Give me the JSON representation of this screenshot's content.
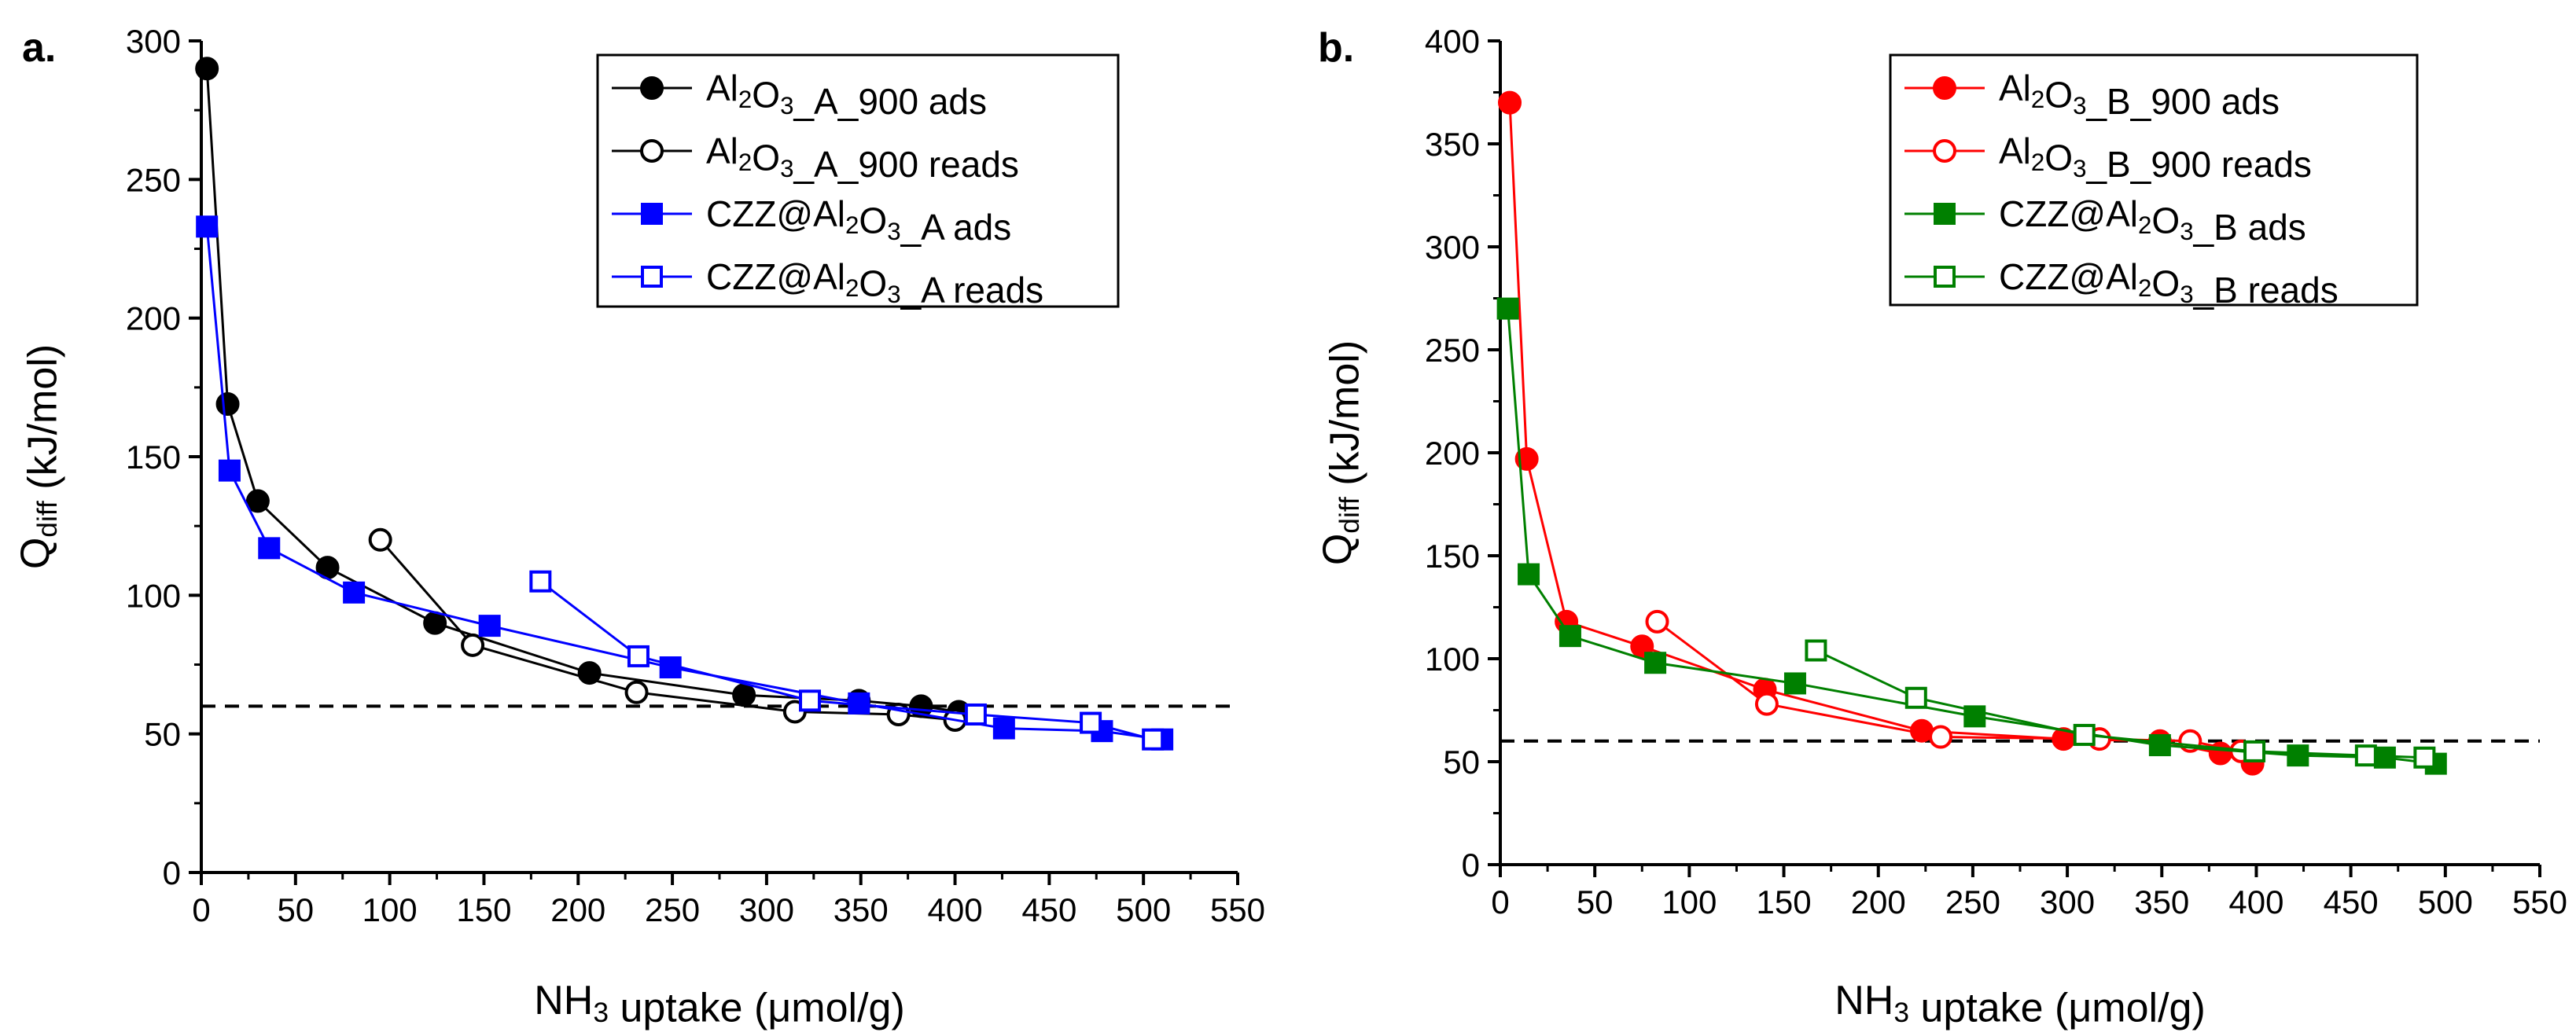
{
  "chart_data": [
    {
      "type": "line",
      "panel_label": "a.",
      "xlabel": {
        "prefix": "NH",
        "sub": "3",
        "suffix": " uptake (μmol/g)"
      },
      "ylabel": {
        "prefix": "Q",
        "sub": "diff",
        "suffix": " (kJ/mol)"
      },
      "xlim": [
        0,
        550
      ],
      "ylim": [
        0,
        300
      ],
      "xticks": [
        "0",
        "50",
        "100",
        "150",
        "200",
        "250",
        "300",
        "350",
        "400",
        "450",
        "500",
        "550"
      ],
      "yticks": [
        "0",
        "50",
        "100",
        "150",
        "200",
        "250",
        "300"
      ],
      "reference_line": {
        "y": 60,
        "style": "dashed",
        "color": "#000000"
      },
      "legend_position": "top-right",
      "series": [
        {
          "name": "Al2O3_A_900 ads",
          "legend": {
            "p1": "Al",
            "s1": "2",
            "p2": "O",
            "s2": "3",
            "p3": "_A_900 ads"
          },
          "color": "#000000",
          "marker": "circle",
          "filled": true,
          "points": [
            [
              3,
              290
            ],
            [
              14,
              169
            ],
            [
              30,
              134
            ],
            [
              67,
              110
            ],
            [
              124,
              90
            ],
            [
              206,
              72
            ],
            [
              288,
              64
            ],
            [
              349,
              62
            ],
            [
              382,
              60
            ],
            [
              402,
              58
            ]
          ]
        },
        {
          "name": "Al2O3_A_900 reads",
          "legend": {
            "p1": "Al",
            "s1": "2",
            "p2": "O",
            "s2": "3",
            "p3": "_A_900 reads"
          },
          "color": "#000000",
          "marker": "circle",
          "filled": false,
          "points": [
            [
              95,
              120
            ],
            [
              144,
              82
            ],
            [
              231,
              65
            ],
            [
              315,
              58
            ],
            [
              370,
              57
            ],
            [
              400,
              55
            ]
          ]
        },
        {
          "name": "CZZ@Al2O3_A ads",
          "legend": {
            "p1": "CZZ@Al",
            "s1": "2",
            "p2": "O",
            "s2": "3",
            "p3": "_A ads"
          },
          "color": "#0000ff",
          "marker": "square",
          "filled": true,
          "points": [
            [
              3,
              233
            ],
            [
              15,
              145
            ],
            [
              36,
              117
            ],
            [
              81,
              101
            ],
            [
              153,
              89
            ],
            [
              249,
              74
            ],
            [
              349,
              61
            ],
            [
              426,
              52
            ],
            [
              478,
              51
            ],
            [
              510,
              48
            ]
          ]
        },
        {
          "name": "CZZ@Al2O3_A reads",
          "legend": {
            "p1": "CZZ@Al",
            "s1": "2",
            "p2": "O",
            "s2": "3",
            "p3": "_A reads"
          },
          "color": "#0000ff",
          "marker": "square",
          "filled": false,
          "points": [
            [
              180,
              105
            ],
            [
              232,
              78
            ],
            [
              323,
              62
            ],
            [
              411,
              57
            ],
            [
              472,
              54
            ],
            [
              505,
              48
            ]
          ]
        }
      ]
    },
    {
      "type": "line",
      "panel_label": "b.",
      "xlabel": {
        "prefix": "NH",
        "sub": "3",
        "suffix": " uptake (μmol/g)"
      },
      "ylabel": {
        "prefix": "Q",
        "sub": "diff",
        "suffix": " (kJ/mol)"
      },
      "xlim": [
        0,
        550
      ],
      "ylim": [
        0,
        400
      ],
      "xticks": [
        "0",
        "50",
        "100",
        "150",
        "200",
        "250",
        "300",
        "350",
        "400",
        "450",
        "500",
        "550"
      ],
      "yticks": [
        "0",
        "50",
        "100",
        "150",
        "200",
        "250",
        "300",
        "350",
        "400"
      ],
      "reference_line": {
        "y": 60,
        "style": "dashed",
        "color": "#000000"
      },
      "legend_position": "top-right",
      "series": [
        {
          "name": "Al2O3_B_900 ads",
          "legend": {
            "p1": "Al",
            "s1": "2",
            "p2": "O",
            "s2": "3",
            "p3": "_B_900 ads"
          },
          "color": "#ff0000",
          "marker": "circle",
          "filled": true,
          "points": [
            [
              5,
              370
            ],
            [
              14,
              197
            ],
            [
              35,
              118
            ],
            [
              75,
              106
            ],
            [
              140,
              85
            ],
            [
              223,
              65
            ],
            [
              298,
              61
            ],
            [
              349,
              60
            ],
            [
              381,
              54
            ],
            [
              398,
              49
            ]
          ]
        },
        {
          "name": "Al2O3_B_900 reads",
          "legend": {
            "p1": "Al",
            "s1": "2",
            "p2": "O",
            "s2": "3",
            "p3": "_B_900 reads"
          },
          "color": "#ff0000",
          "marker": "circle",
          "filled": false,
          "points": [
            [
              83,
              118
            ],
            [
              141,
              78
            ],
            [
              233,
              62
            ],
            [
              317,
              61
            ],
            [
              365,
              60
            ],
            [
              392,
              55
            ]
          ]
        },
        {
          "name": "CZZ@Al2O3_B ads",
          "legend": {
            "p1": "CZZ@Al",
            "s1": "2",
            "p2": "O",
            "s2": "3",
            "p3": "_B ads"
          },
          "color": "#008000",
          "marker": "square",
          "filled": true,
          "points": [
            [
              4,
              270
            ],
            [
              15,
              141
            ],
            [
              37,
              111
            ],
            [
              82,
              98
            ],
            [
              156,
              88
            ],
            [
              251,
              72
            ],
            [
              349,
              58
            ],
            [
              422,
              53
            ],
            [
              468,
              52
            ],
            [
              495,
              49
            ]
          ]
        },
        {
          "name": "CZZ@Al2O3_B reads",
          "legend": {
            "p1": "CZZ@Al",
            "s1": "2",
            "p2": "O",
            "s2": "3",
            "p3": "_B reads"
          },
          "color": "#008000",
          "marker": "square",
          "filled": false,
          "points": [
            [
              167,
              104
            ],
            [
              220,
              81
            ],
            [
              309,
              63
            ],
            [
              399,
              55
            ],
            [
              458,
              53
            ],
            [
              489,
              52
            ]
          ]
        }
      ]
    }
  ]
}
